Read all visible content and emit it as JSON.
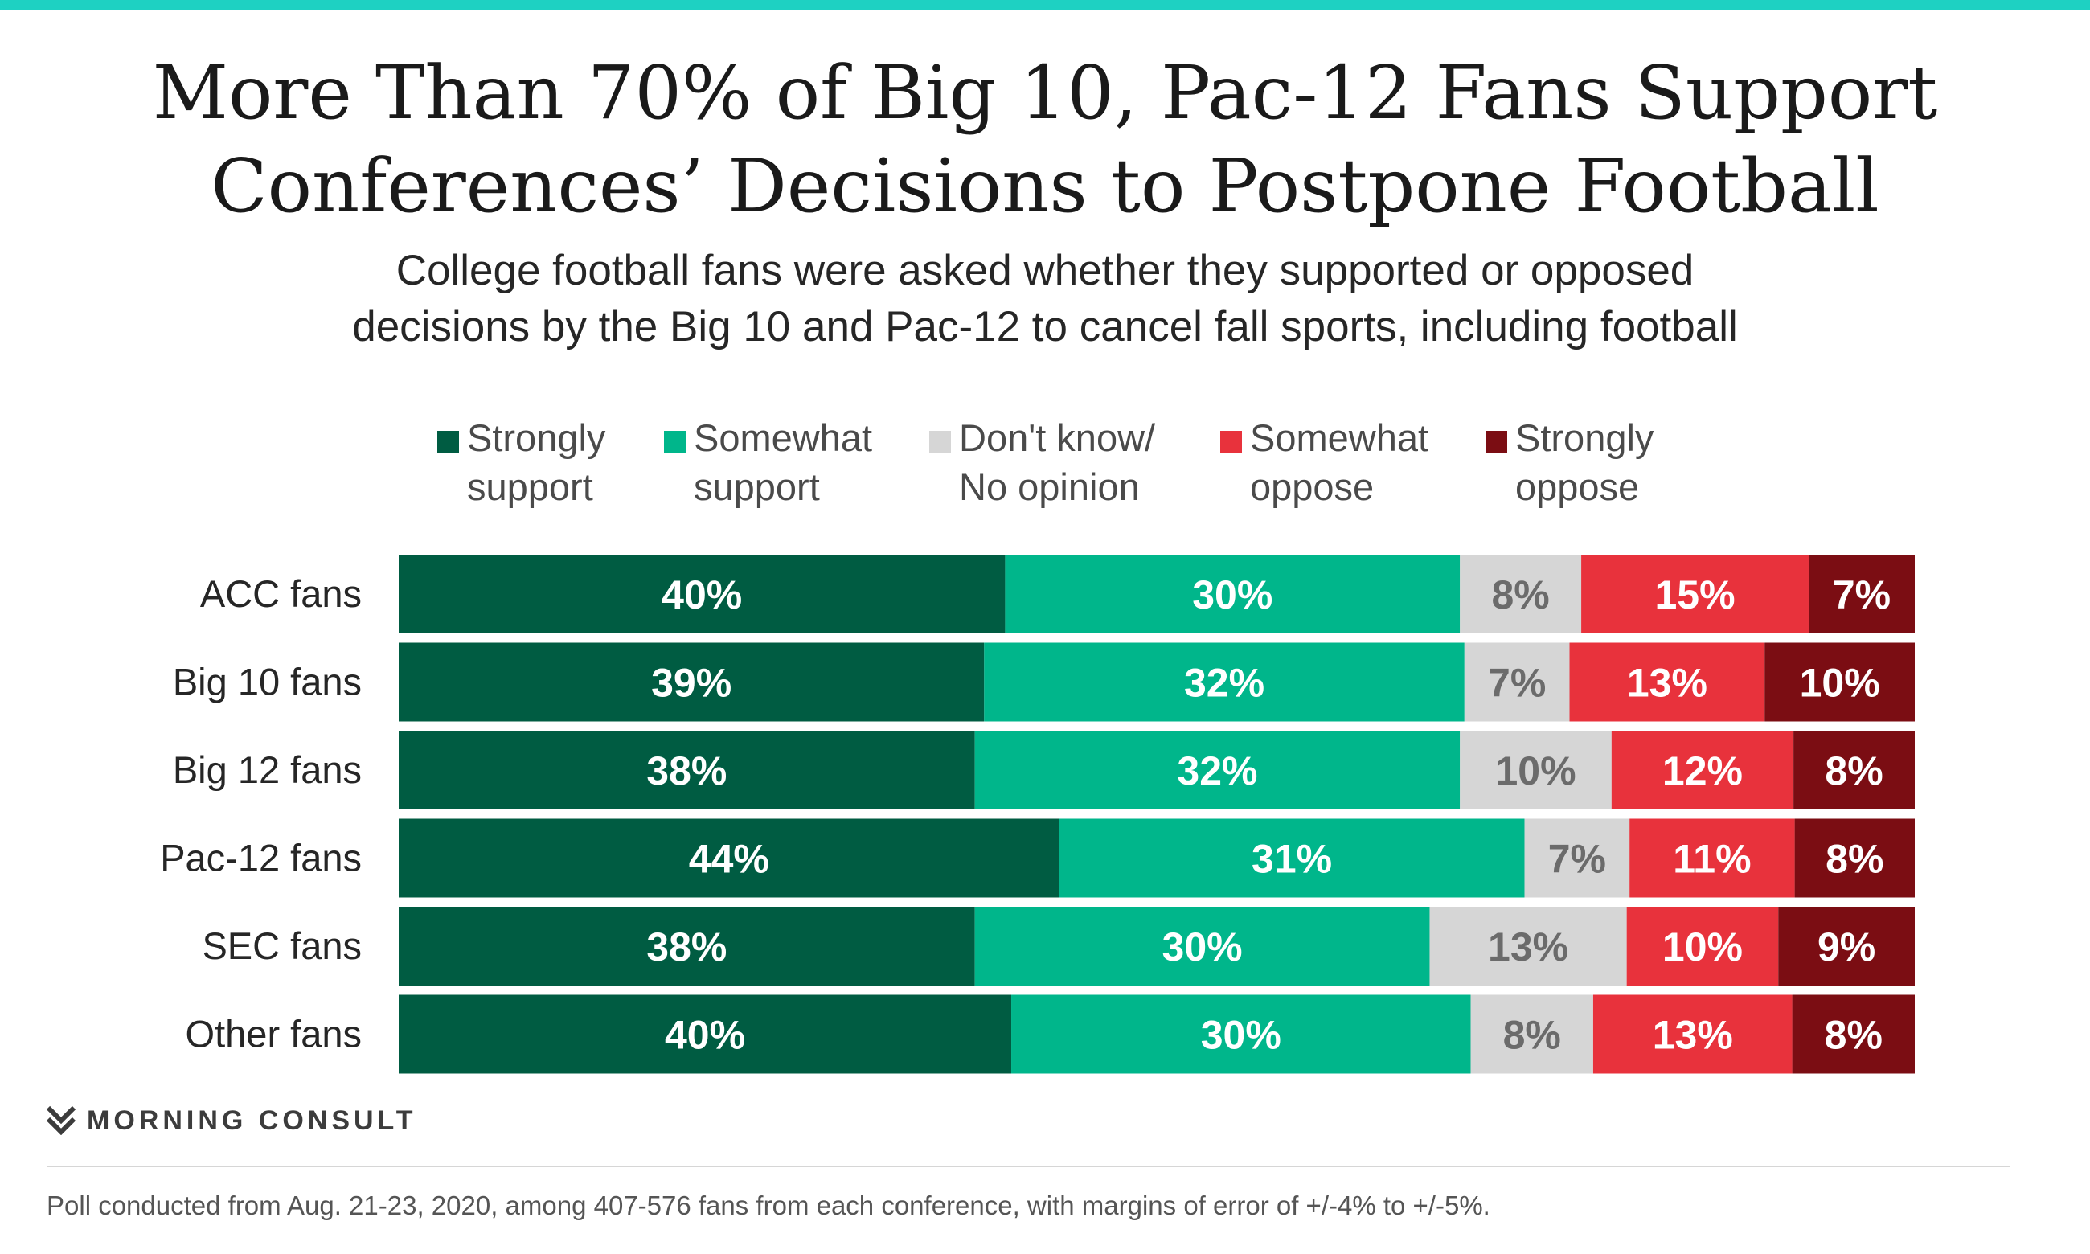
{
  "colors": {
    "accent_bar": "#1ed1c2",
    "strongly_support": "#005c42",
    "somewhat_support": "#00b68b",
    "dont_know": "#d6d6d6",
    "somewhat_oppose": "#e8323c",
    "strongly_oppose": "#7b0d13"
  },
  "header": {
    "title_line1": "More Than 70% of Big 10, Pac-12 Fans Support",
    "title_line2": "Conferences’ Decisions to Postpone Football",
    "subtitle_line1": "College football fans were asked whether they supported or opposed",
    "subtitle_line2": "decisions by the Big 10 and Pac-12 to cancel fall sports, including football"
  },
  "legend": [
    {
      "line1": "Strongly",
      "line2": "support",
      "color": "#005c42"
    },
    {
      "line1": "Somewhat",
      "line2": "support",
      "color": "#00b68b"
    },
    {
      "line1": "Don't know/",
      "line2": "No opinion",
      "color": "#d6d6d6"
    },
    {
      "line1": "Somewhat",
      "line2": "oppose",
      "color": "#e8323c"
    },
    {
      "line1": "Strongly",
      "line2": "oppose",
      "color": "#7b0d13"
    }
  ],
  "chart_data": {
    "type": "bar",
    "orientation": "horizontal",
    "stacked": true,
    "normalized": true,
    "categories": [
      "ACC fans",
      "Big 10 fans",
      "Big 12 fans",
      "Pac-12 fans",
      "SEC fans",
      "Other fans"
    ],
    "series": [
      {
        "name": "Strongly support",
        "color": "#005c42",
        "label_color": "#ffffff",
        "values": [
          40,
          39,
          38,
          44,
          38,
          40
        ]
      },
      {
        "name": "Somewhat support",
        "color": "#00b68b",
        "label_color": "#ffffff",
        "values": [
          30,
          32,
          32,
          31,
          30,
          30
        ]
      },
      {
        "name": "Don't know/No opinion",
        "color": "#d6d6d6",
        "label_color": "#6b6b6b",
        "values": [
          8,
          7,
          10,
          7,
          13,
          8
        ]
      },
      {
        "name": "Somewhat oppose",
        "color": "#e8323c",
        "label_color": "#ffffff",
        "values": [
          15,
          13,
          12,
          11,
          10,
          13
        ]
      },
      {
        "name": "Strongly oppose",
        "color": "#7b0d13",
        "label_color": "#ffffff",
        "values": [
          7,
          10,
          8,
          8,
          9,
          8
        ]
      }
    ],
    "value_suffix": "%",
    "legend_position": "top",
    "grid": false
  },
  "footer": {
    "brand": "MORNING CONSULT",
    "note": "Poll conducted from Aug. 21-23, 2020, among 407-576 fans from each conference, with margins of error of +/-4% to +/-5%."
  }
}
